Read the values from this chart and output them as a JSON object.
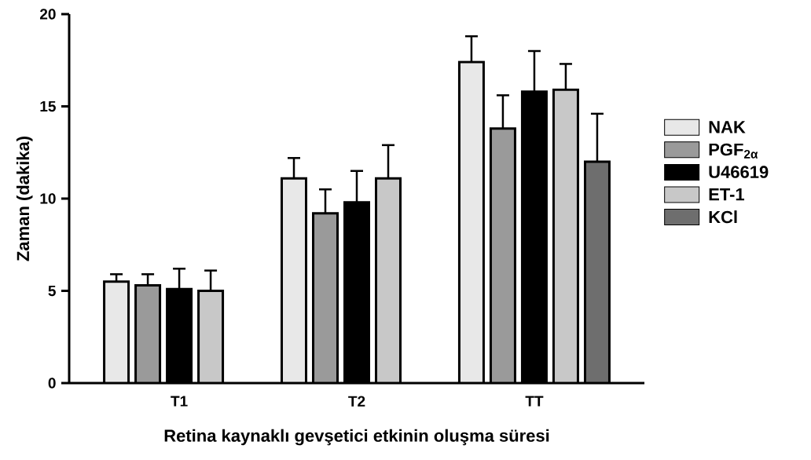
{
  "chart_data": {
    "type": "bar",
    "xlabel": "Retina kaynaklı gevşetici etkinin oluşma süresi",
    "ylabel": "Zaman (dakika)",
    "categories": [
      "T1",
      "T2",
      "TT"
    ],
    "series": [
      {
        "name": "NAK",
        "color": "#e8e8e8",
        "values": [
          5.5,
          11.1,
          17.4
        ],
        "errors": [
          0.4,
          1.1,
          1.4
        ]
      },
      {
        "name": "PGF$_{2α}$",
        "color": "#9a9a9a",
        "values": [
          5.3,
          9.2,
          13.8
        ],
        "errors": [
          0.6,
          1.3,
          1.8
        ]
      },
      {
        "name": "U46619",
        "color": "#000000",
        "values": [
          5.1,
          9.8,
          15.8
        ],
        "errors": [
          1.1,
          1.7,
          2.2
        ]
      },
      {
        "name": "ET-1",
        "color": "#c8c8c8",
        "values": [
          5.0,
          11.1,
          15.9
        ],
        "errors": [
          1.1,
          1.8,
          1.4
        ]
      },
      {
        "name": "KCl",
        "color": "#6e6e6e",
        "values": [
          null,
          null,
          12.0
        ],
        "errors": [
          null,
          null,
          2.6
        ]
      }
    ],
    "ylim": [
      0,
      20
    ],
    "yticks": [
      0,
      5,
      10,
      15,
      20
    ],
    "grid": false,
    "legend": "right"
  }
}
